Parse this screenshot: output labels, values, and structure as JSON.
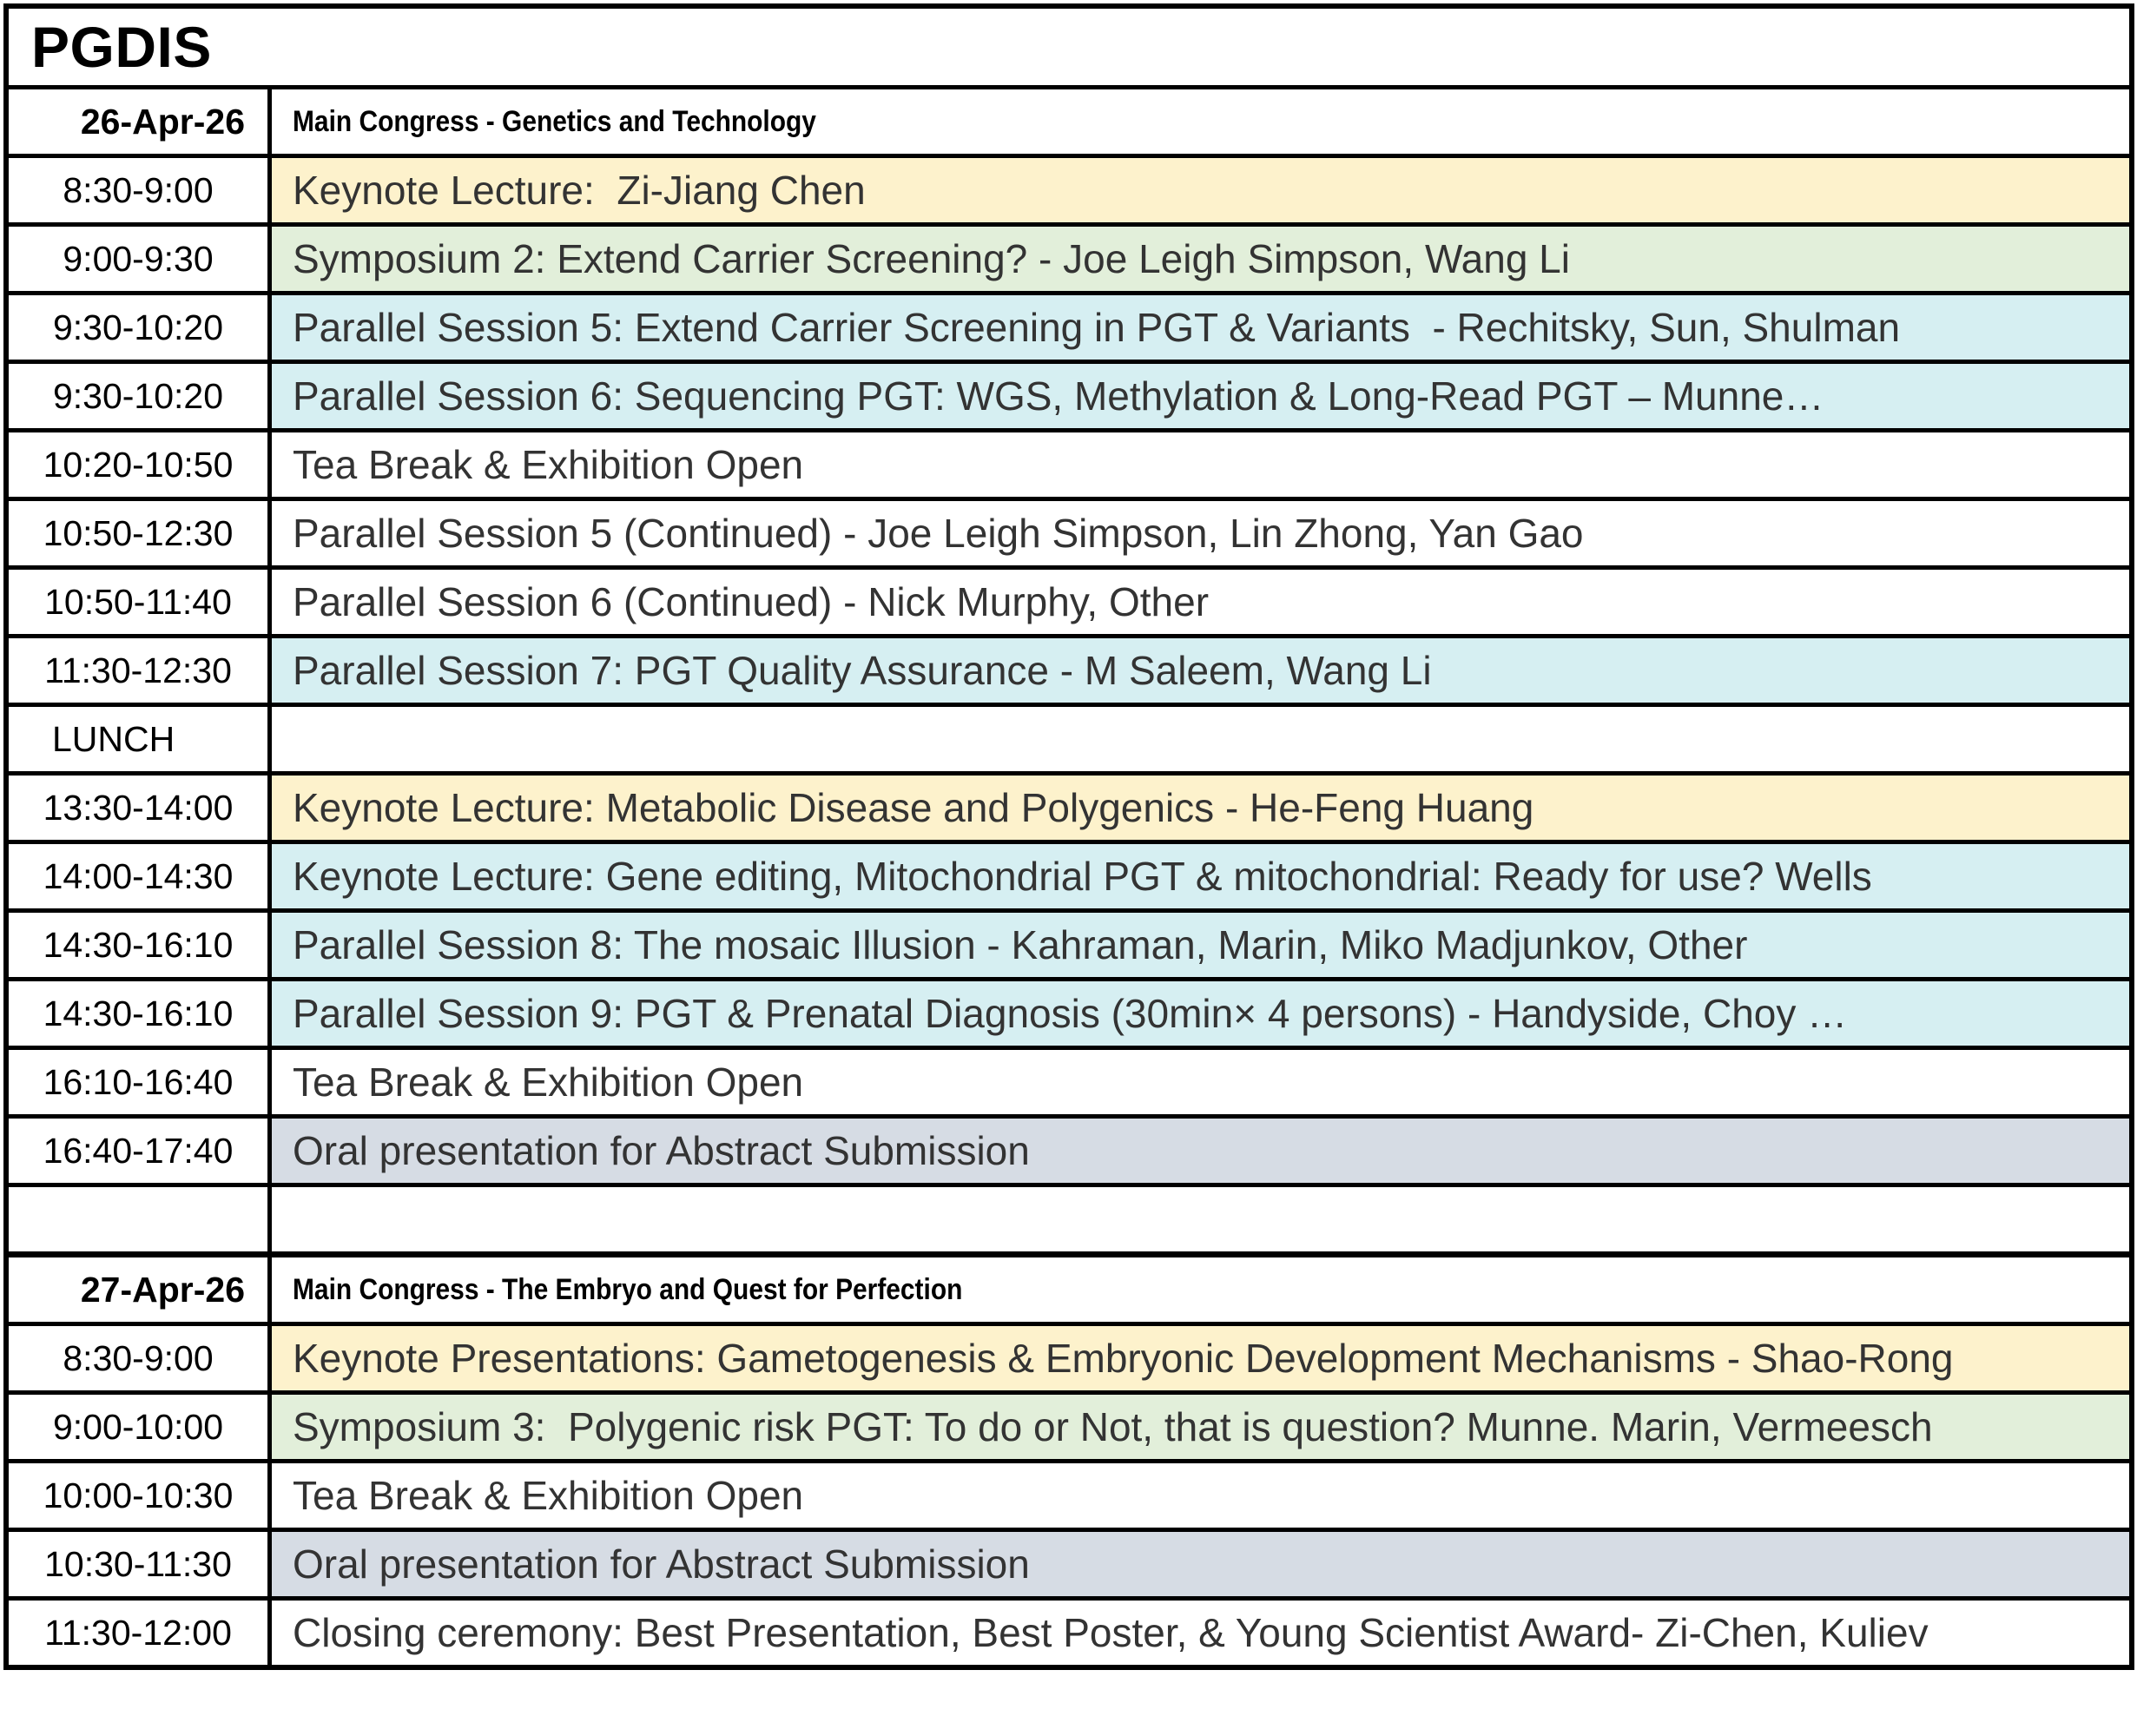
{
  "title": "PGDIS",
  "colors": {
    "keynote_yellow": "#FDF2CC",
    "symposium_green": "#E2EFDA",
    "parallel_cyan": "#D6EFF2",
    "oral_gray": "#D6DCE4",
    "border": "#000000",
    "session_text": "#333333"
  },
  "days": [
    {
      "date": "26-Apr-26",
      "header": "Main Congress - Genetics and Technology",
      "rows": [
        {
          "time": "8:30-9:00",
          "text": "Keynote Lecture:  Zi-Jiang Chen"
        },
        {
          "time": "9:00-9:30",
          "text": "Symposium 2: Extend Carrier Screening? - Joe Leigh Simpson, Wang Li"
        },
        {
          "time": "9:30-10:20",
          "text": "Parallel Session 5: Extend Carrier Screening in PGT & Variants  - Rechitsky, Sun, Shulman"
        },
        {
          "time": "9:30-10:20",
          "text": "Parallel Session 6: Sequencing PGT: WGS, Methylation & Long-Read PGT – Munne…"
        },
        {
          "time": "10:20-10:50",
          "text": "Tea Break & Exhibition Open"
        },
        {
          "time": "10:50-12:30",
          "text": "Parallel Session 5 (Continued) - Joe Leigh Simpson, Lin Zhong, Yan Gao"
        },
        {
          "time": "10:50-11:40",
          "text": "Parallel Session 6 (Continued) - Nick Murphy, Other"
        },
        {
          "time": "11:30-12:30",
          "text": "Parallel Session 7: PGT Quality Assurance - M Saleem, Wang Li"
        },
        {
          "time": "LUNCH",
          "text": ""
        },
        {
          "time": "13:30-14:00",
          "text": "Keynote Lecture: Metabolic Disease and Polygenics - He-Feng Huang"
        },
        {
          "time": "14:00-14:30",
          "text": "Keynote Lecture: Gene editing, Mitochondrial PGT & mitochondrial: Ready for use? Wells"
        },
        {
          "time": "14:30-16:10",
          "text": "Parallel Session 8: The mosaic Illusion - Kahraman, Marin, Miko Madjunkov, Other"
        },
        {
          "time": "14:30-16:10",
          "text": "Parallel Session 9: PGT & Prenatal Diagnosis (30min× 4 persons) - Handyside, Choy …"
        },
        {
          "time": "16:10-16:40",
          "text": "Tea Break & Exhibition Open"
        },
        {
          "time": "16:40-17:40",
          "text": "Oral presentation for Abstract Submission"
        },
        {
          "time": "",
          "text": ""
        }
      ]
    },
    {
      "date": "27-Apr-26",
      "header": "Main Congress - The Embryo and Quest for Perfection",
      "rows": [
        {
          "time": "8:30-9:00",
          "text": "Keynote Presentations: Gametogenesis & Embryonic Development Mechanisms - Shao-Rong"
        },
        {
          "time": "9:00-10:00",
          "text": "Symposium 3:  Polygenic risk PGT: To do or Not, that is question? Munne. Marin, Vermeesch"
        },
        {
          "time": "10:00-10:30",
          "text": "Tea Break & Exhibition Open"
        },
        {
          "time": "10:30-11:30",
          "text": "Oral presentation for Abstract Submission"
        },
        {
          "time": "11:30-12:00",
          "text": "Closing ceremony: Best Presentation, Best Poster, & Young Scientist Award- Zi-Chen, Kuliev"
        }
      ]
    }
  ]
}
